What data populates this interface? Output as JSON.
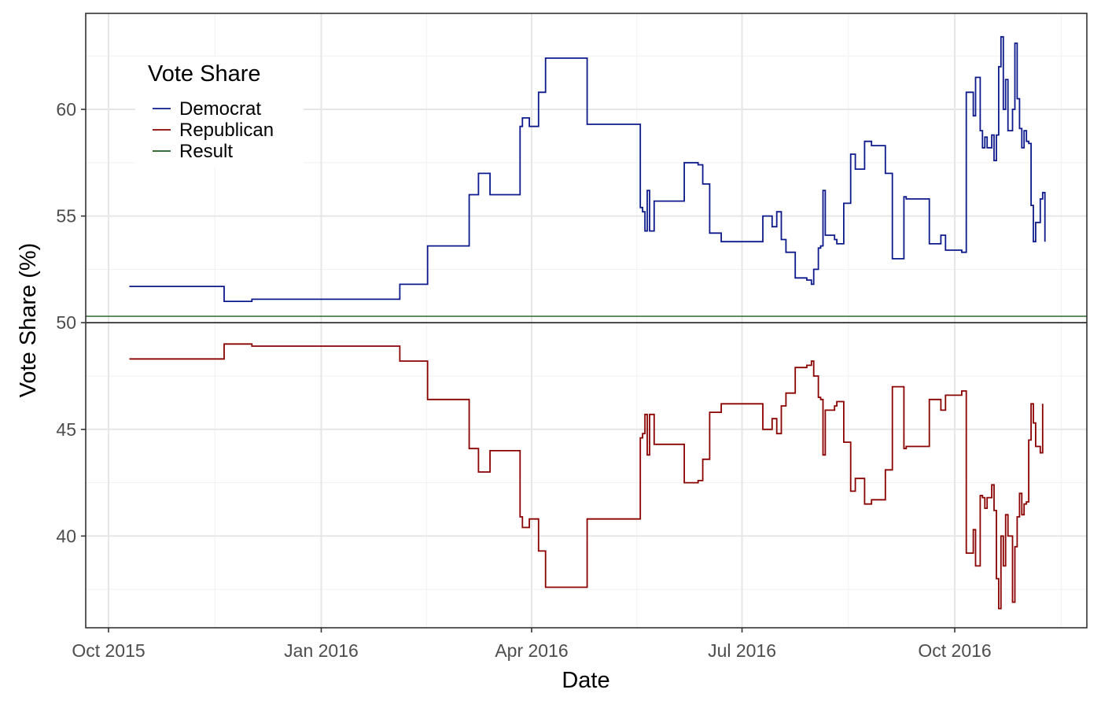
{
  "chart_data": {
    "type": "line",
    "xlabel": "Date",
    "ylabel": "Vote Share (%)",
    "xlim": [
      "2015-10-01",
      "2016-11-15"
    ],
    "ylim": [
      35.7,
      64.5
    ],
    "x_ticks": [
      {
        "date": "2015-10-01",
        "label": "Oct 2015"
      },
      {
        "date": "2016-01-01",
        "label": "Jan 2016"
      },
      {
        "date": "2016-04-01",
        "label": "Apr 2016"
      },
      {
        "date": "2016-07-01",
        "label": "Jul 2016"
      },
      {
        "date": "2016-10-01",
        "label": "Oct 2016"
      }
    ],
    "y_ticks": [
      40,
      45,
      50,
      55,
      60
    ],
    "grid": true,
    "legend": {
      "title": "Vote Share",
      "position": "top-left",
      "entries": [
        "Democrat",
        "Republican",
        "Result"
      ]
    },
    "reference_lines": [
      {
        "name": "Result",
        "y": 50.3,
        "color": "#1a5e1a"
      },
      {
        "y": 50.0,
        "color": "#000000"
      }
    ],
    "series": [
      {
        "name": "Democrat",
        "color": "#0d1a8c",
        "step": true,
        "points": [
          [
            "2015-10-10",
            51.7
          ],
          [
            "2015-11-20",
            51.0
          ],
          [
            "2015-12-02",
            51.1
          ],
          [
            "2016-02-04",
            51.8
          ],
          [
            "2016-02-16",
            53.6
          ],
          [
            "2016-03-05",
            56.0
          ],
          [
            "2016-03-09",
            57.0
          ],
          [
            "2016-03-14",
            56.0
          ],
          [
            "2016-03-27",
            59.2
          ],
          [
            "2016-03-28",
            59.6
          ],
          [
            "2016-03-31",
            59.2
          ],
          [
            "2016-04-04",
            60.8
          ],
          [
            "2016-04-07",
            62.4
          ],
          [
            "2016-04-25",
            59.3
          ],
          [
            "2016-05-18",
            55.4
          ],
          [
            "2016-05-19",
            55.2
          ],
          [
            "2016-05-20",
            54.3
          ],
          [
            "2016-05-21",
            56.2
          ],
          [
            "2016-05-22",
            54.3
          ],
          [
            "2016-05-24",
            55.7
          ],
          [
            "2016-06-06",
            57.5
          ],
          [
            "2016-06-12",
            57.4
          ],
          [
            "2016-06-14",
            56.5
          ],
          [
            "2016-06-17",
            54.2
          ],
          [
            "2016-06-22",
            53.8
          ],
          [
            "2016-07-10",
            55.0
          ],
          [
            "2016-07-14",
            54.5
          ],
          [
            "2016-07-16",
            55.2
          ],
          [
            "2016-07-18",
            53.9
          ],
          [
            "2016-07-20",
            53.3
          ],
          [
            "2016-07-24",
            52.1
          ],
          [
            "2016-07-29",
            52.0
          ],
          [
            "2016-07-31",
            51.8
          ],
          [
            "2016-08-01",
            52.5
          ],
          [
            "2016-08-03",
            53.5
          ],
          [
            "2016-08-04",
            53.6
          ],
          [
            "2016-08-05",
            56.2
          ],
          [
            "2016-08-06",
            54.1
          ],
          [
            "2016-08-10",
            53.9
          ],
          [
            "2016-08-11",
            53.7
          ],
          [
            "2016-08-14",
            55.6
          ],
          [
            "2016-08-17",
            57.9
          ],
          [
            "2016-08-19",
            57.2
          ],
          [
            "2016-08-23",
            58.5
          ],
          [
            "2016-08-26",
            58.3
          ],
          [
            "2016-09-01",
            57.0
          ],
          [
            "2016-09-04",
            53.0
          ],
          [
            "2016-09-09",
            55.9
          ],
          [
            "2016-09-10",
            55.8
          ],
          [
            "2016-09-20",
            53.7
          ],
          [
            "2016-09-25",
            54.1
          ],
          [
            "2016-09-27",
            53.4
          ],
          [
            "2016-10-04",
            53.3
          ],
          [
            "2016-10-06",
            60.8
          ],
          [
            "2016-10-09",
            59.7
          ],
          [
            "2016-10-10",
            61.5
          ],
          [
            "2016-10-12",
            59.0
          ],
          [
            "2016-10-13",
            58.2
          ],
          [
            "2016-10-14",
            58.7
          ],
          [
            "2016-10-15",
            58.2
          ],
          [
            "2016-10-17",
            58.8
          ],
          [
            "2016-10-18",
            57.6
          ],
          [
            "2016-10-19",
            58.8
          ],
          [
            "2016-10-20",
            62.0
          ],
          [
            "2016-10-21",
            63.4
          ],
          [
            "2016-10-22",
            60.0
          ],
          [
            "2016-10-23",
            61.4
          ],
          [
            "2016-10-24",
            59.0
          ],
          [
            "2016-10-26",
            60.0
          ],
          [
            "2016-10-27",
            63.1
          ],
          [
            "2016-10-28",
            60.5
          ],
          [
            "2016-10-29",
            59.1
          ],
          [
            "2016-10-30",
            58.2
          ],
          [
            "2016-10-31",
            59.0
          ],
          [
            "2016-11-01",
            58.5
          ],
          [
            "2016-11-02",
            58.4
          ],
          [
            "2016-11-03",
            55.5
          ],
          [
            "2016-11-04",
            53.8
          ],
          [
            "2016-11-05",
            54.7
          ],
          [
            "2016-11-07",
            55.8
          ],
          [
            "2016-11-08",
            56.1
          ],
          [
            "2016-11-09",
            53.8
          ]
        ]
      },
      {
        "name": "Republican",
        "color": "#8b0000",
        "step": true,
        "points": [
          [
            "2015-10-10",
            48.3
          ],
          [
            "2015-11-20",
            49.0
          ],
          [
            "2015-12-02",
            48.9
          ],
          [
            "2016-02-04",
            48.2
          ],
          [
            "2016-02-16",
            46.4
          ],
          [
            "2016-03-05",
            44.1
          ],
          [
            "2016-03-09",
            43.0
          ],
          [
            "2016-03-14",
            44.0
          ],
          [
            "2016-03-27",
            40.9
          ],
          [
            "2016-03-28",
            40.4
          ],
          [
            "2016-03-31",
            40.8
          ],
          [
            "2016-04-04",
            39.3
          ],
          [
            "2016-04-07",
            37.6
          ],
          [
            "2016-04-25",
            40.8
          ],
          [
            "2016-05-18",
            44.6
          ],
          [
            "2016-05-19",
            44.8
          ],
          [
            "2016-05-20",
            45.7
          ],
          [
            "2016-05-21",
            43.8
          ],
          [
            "2016-05-22",
            45.7
          ],
          [
            "2016-05-24",
            44.3
          ],
          [
            "2016-06-06",
            42.5
          ],
          [
            "2016-06-12",
            42.6
          ],
          [
            "2016-06-14",
            43.6
          ],
          [
            "2016-06-17",
            45.8
          ],
          [
            "2016-06-22",
            46.2
          ],
          [
            "2016-07-10",
            45.0
          ],
          [
            "2016-07-14",
            45.5
          ],
          [
            "2016-07-16",
            44.8
          ],
          [
            "2016-07-18",
            46.1
          ],
          [
            "2016-07-20",
            46.7
          ],
          [
            "2016-07-24",
            47.9
          ],
          [
            "2016-07-29",
            48.0
          ],
          [
            "2016-07-31",
            48.2
          ],
          [
            "2016-08-01",
            47.5
          ],
          [
            "2016-08-03",
            46.5
          ],
          [
            "2016-08-04",
            46.4
          ],
          [
            "2016-08-05",
            43.8
          ],
          [
            "2016-08-06",
            45.9
          ],
          [
            "2016-08-10",
            46.1
          ],
          [
            "2016-08-11",
            46.3
          ],
          [
            "2016-08-14",
            44.4
          ],
          [
            "2016-08-17",
            42.1
          ],
          [
            "2016-08-19",
            42.7
          ],
          [
            "2016-08-23",
            41.5
          ],
          [
            "2016-08-26",
            41.7
          ],
          [
            "2016-09-01",
            43.1
          ],
          [
            "2016-09-04",
            47.0
          ],
          [
            "2016-09-09",
            44.1
          ],
          [
            "2016-09-10",
            44.2
          ],
          [
            "2016-09-20",
            46.4
          ],
          [
            "2016-09-25",
            45.9
          ],
          [
            "2016-09-27",
            46.6
          ],
          [
            "2016-10-04",
            46.8
          ],
          [
            "2016-10-06",
            39.2
          ],
          [
            "2016-10-09",
            40.3
          ],
          [
            "2016-10-10",
            38.6
          ],
          [
            "2016-10-12",
            41.9
          ],
          [
            "2016-10-13",
            41.8
          ],
          [
            "2016-10-14",
            41.3
          ],
          [
            "2016-10-15",
            41.8
          ],
          [
            "2016-10-17",
            42.4
          ],
          [
            "2016-10-18",
            41.2
          ],
          [
            "2016-10-19",
            38.0
          ],
          [
            "2016-10-20",
            36.6
          ],
          [
            "2016-10-21",
            40.0
          ],
          [
            "2016-10-22",
            38.6
          ],
          [
            "2016-10-23",
            41.0
          ],
          [
            "2016-10-24",
            40.0
          ],
          [
            "2016-10-26",
            36.9
          ],
          [
            "2016-10-27",
            39.5
          ],
          [
            "2016-10-28",
            40.9
          ],
          [
            "2016-10-29",
            42.0
          ],
          [
            "2016-10-30",
            41.0
          ],
          [
            "2016-10-31",
            41.5
          ],
          [
            "2016-11-01",
            41.6
          ],
          [
            "2016-11-02",
            44.5
          ],
          [
            "2016-11-03",
            46.2
          ],
          [
            "2016-11-04",
            45.3
          ],
          [
            "2016-11-05",
            44.2
          ],
          [
            "2016-11-07",
            43.9
          ],
          [
            "2016-11-08",
            46.2
          ]
        ]
      }
    ]
  }
}
